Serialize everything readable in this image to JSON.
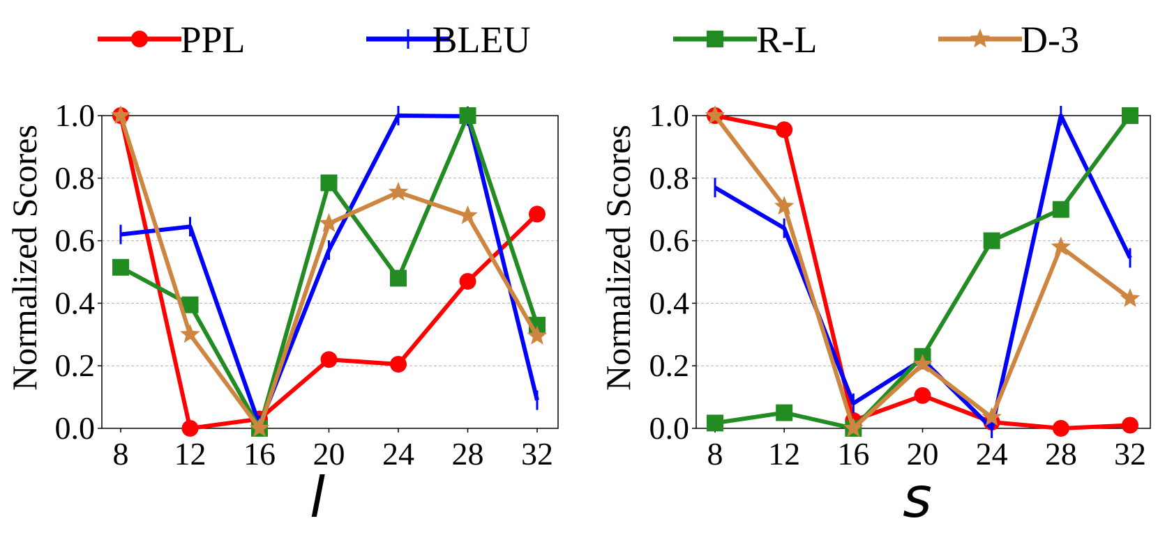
{
  "chart_data": [
    {
      "type": "line",
      "xlabel": "l",
      "ylabel": "Normalized Scores",
      "x": [
        8,
        12,
        16,
        20,
        24,
        28,
        32
      ],
      "xticks": [
        "8",
        "12",
        "16",
        "20",
        "24",
        "28",
        "32"
      ],
      "yticks": [
        "0.0",
        "0.2",
        "0.4",
        "0.6",
        "0.8",
        "1.0"
      ],
      "ylim": [
        0,
        1
      ],
      "grid": "horizontal dashed",
      "series": [
        {
          "name": "PPL",
          "values": [
            1.0,
            0.0,
            0.03,
            0.22,
            0.205,
            0.47,
            0.685
          ]
        },
        {
          "name": "BLEU",
          "values": [
            0.62,
            0.645,
            0.01,
            0.57,
            1.0,
            0.998,
            0.09
          ]
        },
        {
          "name": "R-L",
          "values": [
            0.515,
            0.395,
            0.0,
            0.785,
            0.48,
            1.0,
            0.33
          ]
        },
        {
          "name": "D-3",
          "values": [
            1.0,
            0.3,
            0.0,
            0.655,
            0.755,
            0.68,
            0.295
          ]
        }
      ]
    },
    {
      "type": "line",
      "xlabel": "s",
      "ylabel": "Normalized Scores",
      "x": [
        8,
        12,
        16,
        20,
        24,
        28,
        32
      ],
      "xticks": [
        "8",
        "12",
        "16",
        "20",
        "24",
        "28",
        "32"
      ],
      "yticks": [
        "0.0",
        "0.2",
        "0.4",
        "0.6",
        "0.8",
        "1.0"
      ],
      "ylim": [
        0,
        1
      ],
      "grid": "horizontal dashed",
      "series": [
        {
          "name": "PPL",
          "values": [
            1.0,
            0.955,
            0.025,
            0.105,
            0.02,
            0.0,
            0.01
          ]
        },
        {
          "name": "BLEU",
          "values": [
            0.77,
            0.64,
            0.08,
            0.22,
            0.0,
            1.0,
            0.545
          ]
        },
        {
          "name": "R-L",
          "values": [
            0.017,
            0.05,
            0.0,
            0.23,
            0.6,
            0.7,
            1.0
          ]
        },
        {
          "name": "D-3",
          "values": [
            1.0,
            0.71,
            0.0,
            0.205,
            0.035,
            0.58,
            0.415
          ]
        }
      ]
    }
  ],
  "legend": {
    "placement": "top",
    "items": [
      {
        "label": "PPL",
        "color": "#ff0000",
        "marker": "circle"
      },
      {
        "label": "BLEU",
        "color": "#0000ff",
        "marker": "vline"
      },
      {
        "label": "R-L",
        "color": "#228b22",
        "marker": "square"
      },
      {
        "label": "D-3",
        "color": "#cd853f",
        "marker": "star"
      }
    ]
  }
}
